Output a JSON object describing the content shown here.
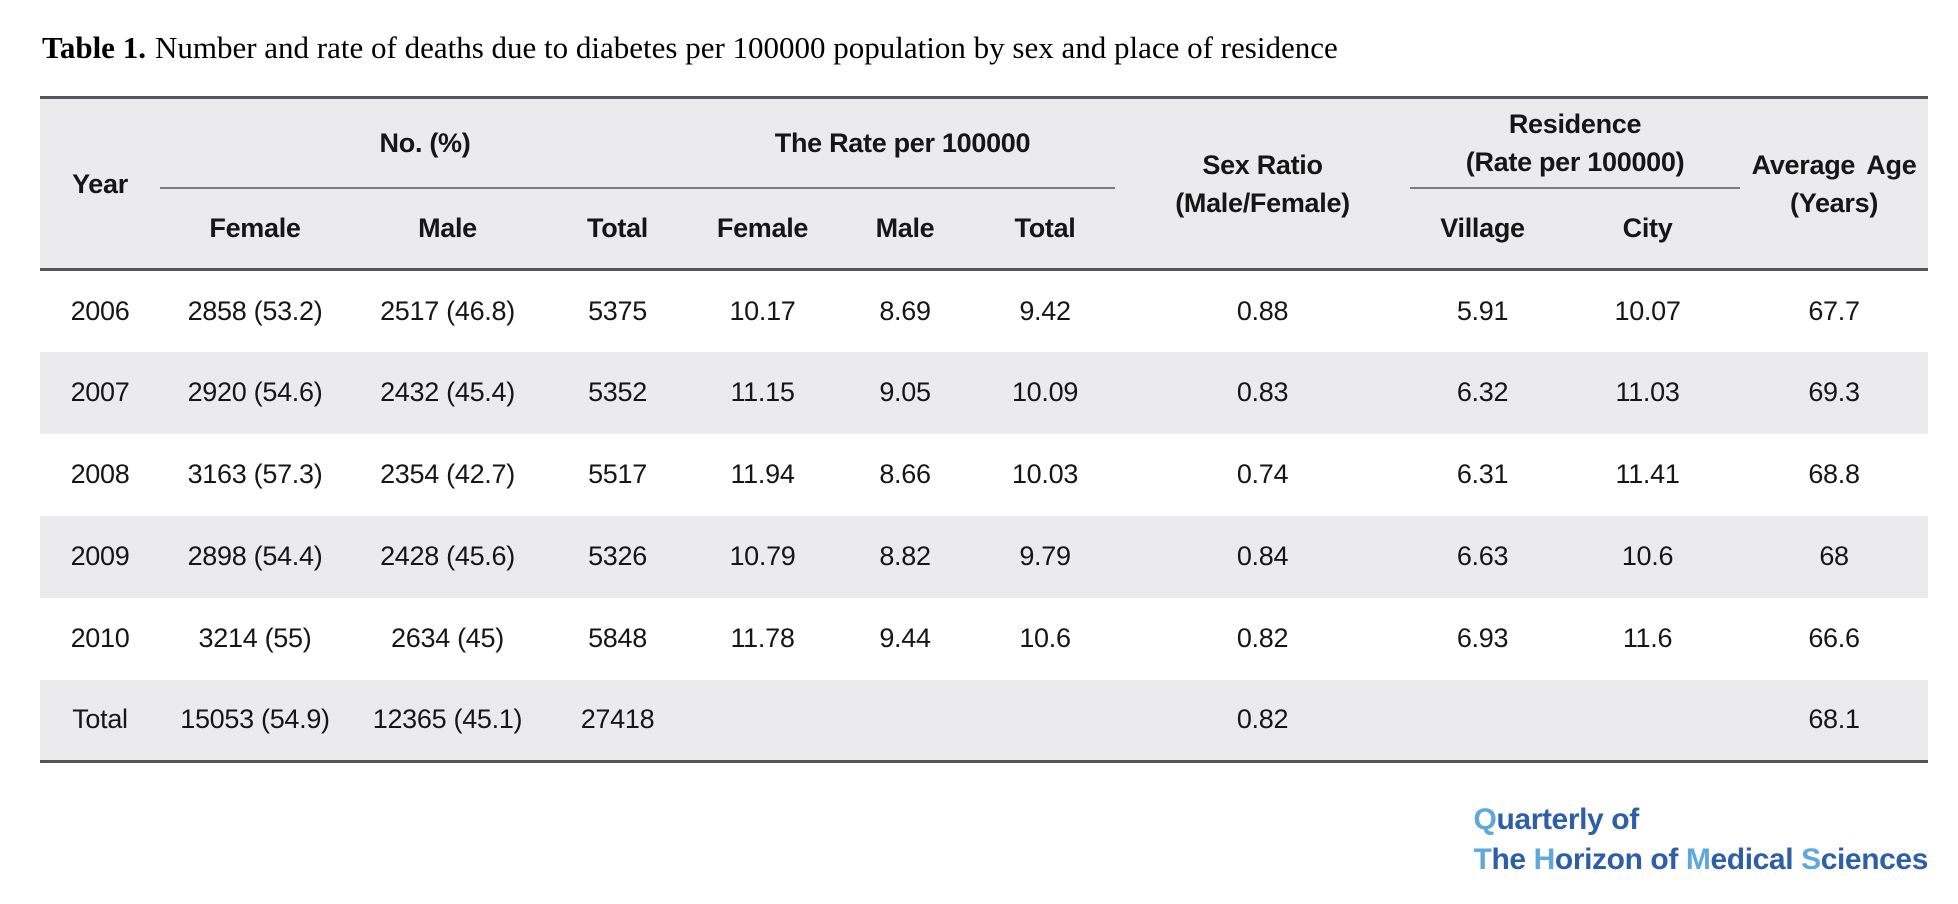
{
  "title": {
    "label": "Table 1.",
    "text": "Number and rate of deaths due to diabetes per 100000 population by sex and place of residence"
  },
  "table": {
    "header": {
      "year": "Year",
      "no_group": "No. (%)",
      "rate_group": "The Rate per 100000",
      "sex_ratio_line1": "Sex Ratio",
      "sex_ratio_line2": "(Male/Female)",
      "residence_line1": "Residence",
      "residence_line2": "(Rate per 100000)",
      "avg_age_line1": "Average Age",
      "avg_age_line2": "(Years)",
      "sub": {
        "female": "Female",
        "male": "Male",
        "total": "Total",
        "village": "Village",
        "city": "City"
      }
    },
    "col_keys": [
      "year",
      "no-female",
      "no-male",
      "no-total",
      "rate-female",
      "rate-male",
      "rate-total",
      "sex-ratio",
      "village",
      "city",
      "average-age"
    ],
    "rows": [
      {
        "cells": [
          "2006",
          "2858 (53.2)",
          "2517 (46.8)",
          "5375",
          "10.17",
          "8.69",
          "9.42",
          "0.88",
          "5.91",
          "10.07",
          "67.7"
        ]
      },
      {
        "cells": [
          "2007",
          "2920 (54.6)",
          "2432 (45.4)",
          "5352",
          "11.15",
          "9.05",
          "10.09",
          "0.83",
          "6.32",
          "11.03",
          "69.3"
        ]
      },
      {
        "cells": [
          "2008",
          "3163 (57.3)",
          "2354 (42.7)",
          "5517",
          "11.94",
          "8.66",
          "10.03",
          "0.74",
          "6.31",
          "11.41",
          "68.8"
        ]
      },
      {
        "cells": [
          "2009",
          "2898 (54.4)",
          "2428 (45.6)",
          "5326",
          "10.79",
          "8.82",
          "9.79",
          "0.84",
          "6.63",
          "10.6",
          "68"
        ]
      },
      {
        "cells": [
          "2010",
          "3214 (55)",
          "2634 (45)",
          "5848",
          "11.78",
          "9.44",
          "10.6",
          "0.82",
          "6.93",
          "11.6",
          "66.6"
        ]
      },
      {
        "cells": [
          "Total",
          "15053 (54.9)",
          "12365 (45.1)",
          "27418",
          "",
          "",
          "",
          "0.82",
          "",
          "",
          "68.1"
        ]
      }
    ]
  },
  "logo": {
    "lines": [
      [
        {
          "text": "Q",
          "tone": "light"
        },
        {
          "text": "uarterly of",
          "tone": "dark"
        }
      ],
      [
        {
          "text": "T",
          "tone": "light"
        },
        {
          "text": "he ",
          "tone": "dark"
        },
        {
          "text": "H",
          "tone": "light"
        },
        {
          "text": "orizon of ",
          "tone": "dark"
        },
        {
          "text": "M",
          "tone": "light"
        },
        {
          "text": "edical ",
          "tone": "dark"
        },
        {
          "text": "S",
          "tone": "light"
        },
        {
          "text": "ciences",
          "tone": "dark"
        }
      ]
    ]
  },
  "colors": {
    "logo_light": "#5fa8dc",
    "logo_dark": "#2d5fa6",
    "row_stripe": "#ebebed",
    "rule_dark": "#54555a",
    "rule_thin": "#7b7c7e",
    "text": "#161616"
  },
  "chart_data": {
    "type": "table",
    "title": "Table 1. Number and rate of deaths due to diabetes per 100000 population by sex and place of residence",
    "column_groups": [
      "Year",
      "No. (%)",
      "The Rate per 100000",
      "Sex Ratio (Male/Female)",
      "Residence (Rate per 100000)",
      "Average Age (Years)"
    ],
    "columns": [
      "Year",
      "No. Female",
      "No. Male",
      "No. Total",
      "Rate Female",
      "Rate Male",
      "Rate Total",
      "Sex Ratio (Male/Female)",
      "Village",
      "City",
      "Average Age (Years)"
    ],
    "rows": [
      [
        "2006",
        "2858 (53.2)",
        "2517 (46.8)",
        5375,
        10.17,
        8.69,
        9.42,
        0.88,
        5.91,
        10.07,
        67.7
      ],
      [
        "2007",
        "2920 (54.6)",
        "2432 (45.4)",
        5352,
        11.15,
        9.05,
        10.09,
        0.83,
        6.32,
        11.03,
        69.3
      ],
      [
        "2008",
        "3163 (57.3)",
        "2354 (42.7)",
        5517,
        11.94,
        8.66,
        10.03,
        0.74,
        6.31,
        11.41,
        68.8
      ],
      [
        "2009",
        "2898 (54.4)",
        "2428 (45.6)",
        5326,
        10.79,
        8.82,
        9.79,
        0.84,
        6.63,
        10.6,
        68
      ],
      [
        "2010",
        "3214 (55)",
        "2634 (45)",
        5848,
        11.78,
        9.44,
        10.6,
        0.82,
        6.93,
        11.6,
        66.6
      ],
      [
        "Total",
        "15053 (54.9)",
        "12365 (45.1)",
        27418,
        null,
        null,
        null,
        0.82,
        null,
        null,
        68.1
      ]
    ]
  }
}
